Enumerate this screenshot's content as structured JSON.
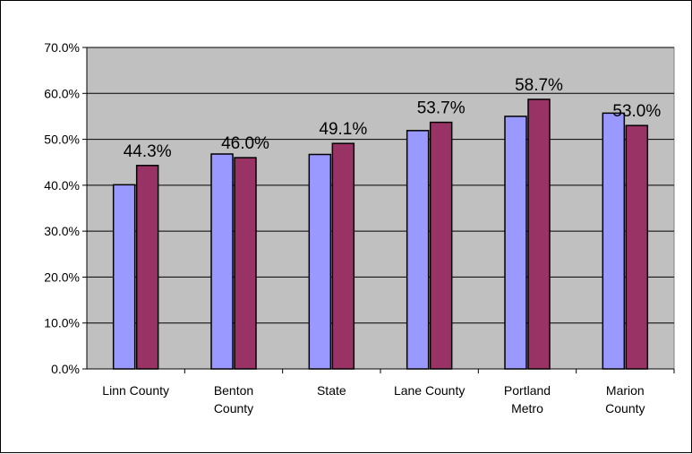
{
  "chart_data": {
    "type": "bar",
    "categories": [
      [
        "Linn County"
      ],
      [
        "Benton",
        "County"
      ],
      [
        "State"
      ],
      [
        "Lane County"
      ],
      [
        "Portland",
        "Metro"
      ],
      [
        "Marion",
        "County"
      ]
    ],
    "series": [
      {
        "values": [
          40.1,
          46.8,
          46.7,
          51.9,
          55.0,
          55.7
        ]
      },
      {
        "values": [
          44.3,
          46.0,
          49.1,
          53.7,
          58.7,
          53.0
        ],
        "data_labels": [
          "44.3%",
          "46.0%",
          "49.1%",
          "53.7%",
          "58.7%",
          "53.0%"
        ]
      }
    ],
    "ylim": [
      0,
      70
    ],
    "yticks": [
      "0.0%",
      "10.0%",
      "20.0%",
      "30.0%",
      "40.0%",
      "50.0%",
      "60.0%",
      "70.0%"
    ],
    "grid": true,
    "legend": "none",
    "colors": {
      "series1": "#9999FF",
      "series2": "#993366",
      "plot_background": "#C0C0C0",
      "gridline": "#000000"
    }
  }
}
